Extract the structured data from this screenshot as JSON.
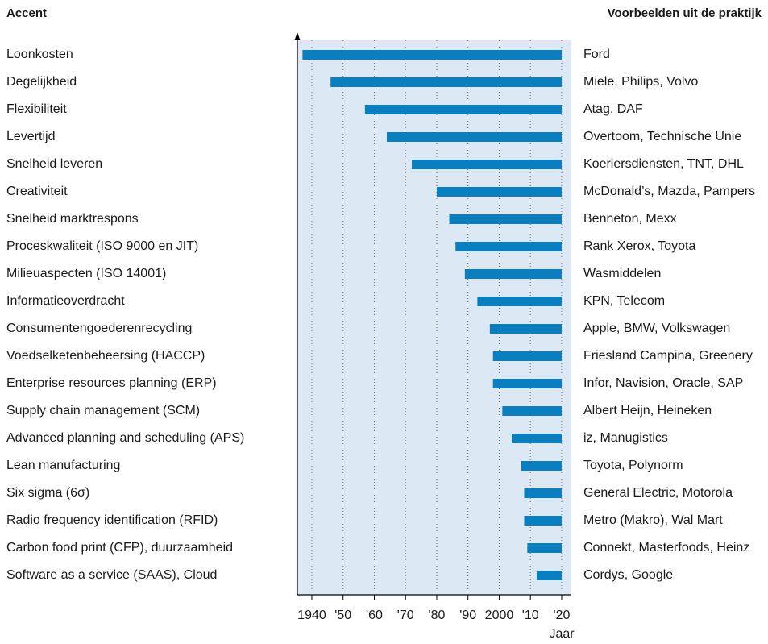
{
  "chart_data": {
    "type": "bar",
    "orientation": "horizontal",
    "category_header": "Accent",
    "examples_header": "Voorbeelden uit de praktijk",
    "xlabel": "Jaar",
    "color": "#0a7fc0",
    "background": "#dde8f5",
    "grid": true,
    "categories": [
      "Loonkosten",
      "Degelijkheid",
      "Flexibiliteit",
      "Levertijd",
      "Snelheid leveren",
      "Creativiteit",
      "Snelheid marktrespons",
      "Proceskwaliteit (ISO 9000 en JIT)",
      "Milieuaspecten (ISO 14001)",
      "Informatieoverdracht",
      "Consumentengoederenrecycling",
      "Voedselketenbeheersing (HACCP)",
      "Enterprise resources planning (ERP)",
      "Supply chain management (SCM)",
      "Advanced planning and scheduling (APS)",
      "Lean manufacturing",
      "Six sigma (6σ)",
      "Radio frequency identification (RFID)",
      "Carbon food print (CFP), duurzaamheid",
      "Software as a service (SAAS), Cloud"
    ],
    "start": [
      1937,
      1946,
      1957,
      1964,
      1972,
      1980,
      1984,
      1986,
      1989,
      1993,
      1997,
      1998,
      1998,
      2001,
      2004,
      2007,
      2008,
      2008,
      2009,
      2012
    ],
    "end": [
      2020,
      2020,
      2020,
      2020,
      2020,
      2020,
      2020,
      2020,
      2020,
      2020,
      2020,
      2020,
      2020,
      2020,
      2020,
      2020,
      2020,
      2020,
      2020,
      2020
    ],
    "examples": [
      "Ford",
      "Miele, Philips, Volvo",
      "Atag, DAF",
      "Overtoom, Technische Unie",
      "Koeriersdiensten, TNT, DHL",
      "McDonald’s, Mazda, Pampers",
      "Benneton, Mexx",
      "Rank Xerox, Toyota",
      "Wasmiddelen",
      "KPN, Telecom",
      "Apple, BMW, Volkswagen",
      "Friesland Campina, Greenery",
      "Infor, Navision, Oracle, SAP",
      "Albert Heijn, Heineken",
      "iz, Manugistics",
      "Toyota, Polynorm",
      "General Electric, Motorola",
      "Metro (Makro), Wal Mart",
      "Connekt, Masterfoods, Heinz",
      "Cordys, Google"
    ],
    "xlim": [
      1935,
      2023
    ],
    "xticks": [
      1940,
      {
        "value": 1950,
        "label": "'50"
      },
      {
        "value": 1960,
        "label": "'60"
      },
      {
        "value": 1970,
        "label": "'70"
      },
      {
        "value": 1980,
        "label": "'80"
      },
      {
        "value": 1990,
        "label": "'90"
      },
      2000,
      {
        "value": 2010,
        "label": "'10"
      },
      {
        "value": 2020,
        "label": "'20"
      }
    ]
  }
}
